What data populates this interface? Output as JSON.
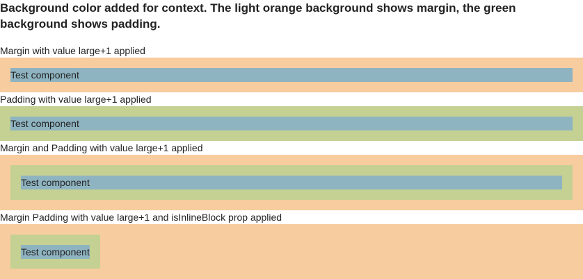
{
  "intro": {
    "text": "Background color added for context. The light orange background shows margin, the green background shows padding."
  },
  "colors": {
    "margin": "#f7cc9f",
    "padding": "#c4d192",
    "component": "#8fb4c1",
    "text": "#222222"
  },
  "examples": [
    {
      "label": "Margin with value large+1 applied",
      "component_text": "Test component"
    },
    {
      "label": "Padding with value large+1 applied",
      "component_text": "Test component"
    },
    {
      "label": "Margin and Padding with value large+1 applied",
      "component_text": "Test component"
    },
    {
      "label": "Margin Padding with value large+1 and isInlineBlock prop applied",
      "component_text": "Test component"
    }
  ]
}
